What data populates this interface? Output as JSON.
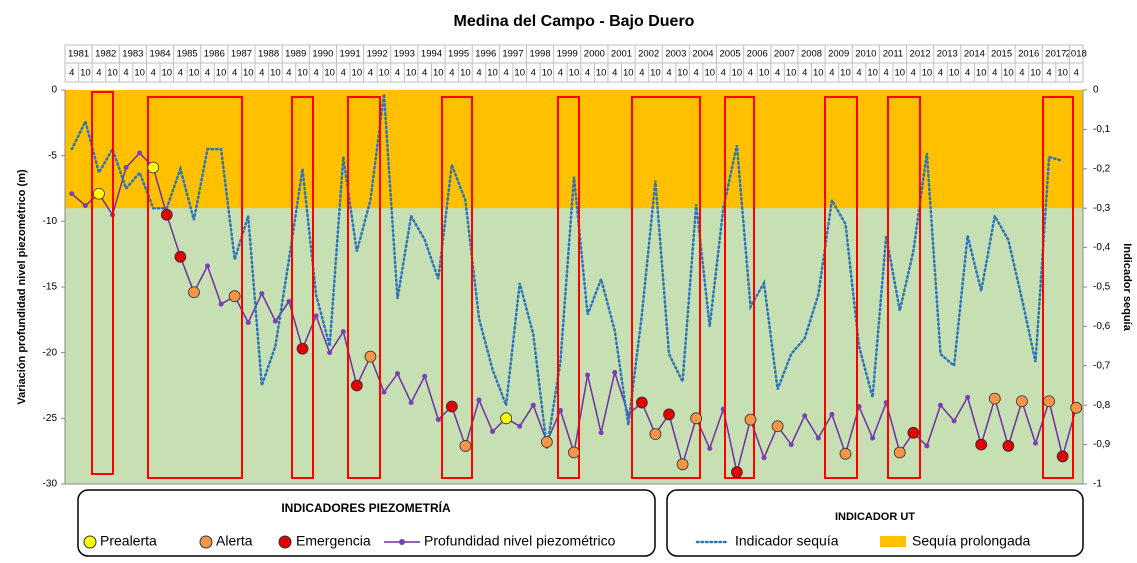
{
  "chart_data": {
    "type": "line",
    "title": "Medina del Campo - Bajo Duero",
    "years": [
      "1981",
      "1982",
      "1983",
      "1984",
      "1985",
      "1986",
      "1987",
      "1988",
      "1989",
      "1990",
      "1991",
      "1992",
      "1993",
      "1994",
      "1995",
      "1996",
      "1997",
      "1998",
      "1999",
      "2000",
      "2001",
      "2002",
      "2003",
      "2004",
      "2005",
      "2006",
      "2007",
      "2008",
      "2009",
      "2010",
      "2011",
      "2012",
      "2013",
      "2014",
      "2015",
      "2016",
      "2017",
      "2018"
    ],
    "categories": [
      "4",
      "10",
      "4",
      "10",
      "4",
      "10",
      "4",
      "10",
      "4",
      "10",
      "4",
      "10",
      "4",
      "10",
      "4",
      "10",
      "4",
      "10",
      "4",
      "10",
      "4",
      "10",
      "4",
      "10",
      "4",
      "10",
      "4",
      "10",
      "4",
      "10",
      "4",
      "10",
      "4",
      "10",
      "4",
      "10",
      "4",
      "10",
      "4",
      "10",
      "4",
      "10",
      "4",
      "10",
      "4",
      "10",
      "4",
      "10",
      "4",
      "10",
      "4",
      "10",
      "4",
      "10",
      "4",
      "10",
      "4",
      "10",
      "4",
      "10",
      "4",
      "10",
      "4",
      "10",
      "4",
      "10",
      "4",
      "10",
      "4",
      "10",
      "4",
      "10",
      "4",
      "10",
      "4"
    ],
    "ylabel": "Variación profundidad nivel piezométrico (m)",
    "y2label": "Indicador sequía",
    "ylim": [
      -30,
      0
    ],
    "yticks": [
      0,
      -5,
      -10,
      -15,
      -20,
      -25,
      -30
    ],
    "y2lim": [
      -1,
      0
    ],
    "y2ticks": [
      0,
      {
        "value": -0.1,
        "label": "-0,1"
      },
      {
        "value": -0.2,
        "label": "-0,2"
      },
      {
        "value": -0.3,
        "label": "-0,3"
      },
      {
        "value": -0.4,
        "label": "-0,4"
      },
      {
        "value": -0.5,
        "label": "-0,5"
      },
      {
        "value": -0.6,
        "label": "-0,6"
      },
      {
        "value": -0.7,
        "label": "-0,7"
      },
      {
        "value": -0.8,
        "label": "-0,8"
      },
      {
        "value": -0.9,
        "label": "-0,9"
      },
      -1
    ],
    "legend_titles": [
      "INDICADORES PIEZOMETRÍA",
      "INDICADOR UT"
    ],
    "band": {
      "name": "Sequía prolongada",
      "color": "#ffc000",
      "axis": "y2",
      "range": [
        -0.3,
        0
      ]
    },
    "background": "#c6e0b4",
    "series": [
      {
        "name": "Prealerta",
        "color": "#ffff00",
        "marker": true,
        "values": [
          null,
          null,
          -7.9,
          null,
          null,
          null,
          -5.9,
          null,
          null,
          null,
          null,
          null,
          null,
          null,
          null,
          null,
          null,
          null,
          null,
          null,
          null,
          null,
          null,
          null,
          null,
          null,
          null,
          null,
          null,
          null,
          null,
          null,
          -25.0,
          null,
          null,
          null,
          null,
          null,
          null,
          null,
          null,
          null,
          null,
          null,
          null,
          null,
          null,
          null,
          null,
          null,
          null,
          null,
          null,
          null,
          null,
          null,
          null,
          null,
          null,
          null,
          null,
          null,
          null,
          null,
          null,
          null,
          null,
          null,
          null,
          null,
          null,
          null,
          null,
          null,
          null
        ]
      },
      {
        "name": "Alerta",
        "color": "#f79646",
        "marker": true,
        "values": [
          null,
          null,
          null,
          null,
          null,
          null,
          null,
          null,
          null,
          -15.4,
          null,
          null,
          -15.7,
          null,
          null,
          null,
          null,
          null,
          null,
          null,
          null,
          null,
          -20.3,
          null,
          null,
          null,
          null,
          null,
          null,
          -27.1,
          null,
          null,
          null,
          null,
          null,
          -26.8,
          null,
          -27.6,
          null,
          null,
          null,
          null,
          null,
          -26.2,
          null,
          -28.5,
          -25.0,
          null,
          null,
          null,
          -25.1,
          null,
          -25.6,
          null,
          null,
          null,
          null,
          -27.7,
          null,
          null,
          null,
          -27.6,
          null,
          null,
          null,
          null,
          null,
          null,
          -23.5,
          null,
          -23.7,
          null,
          -23.7,
          null,
          -24.2
        ]
      },
      {
        "name": "Emergencia",
        "color": "#e00000",
        "marker": true,
        "values": [
          null,
          null,
          null,
          null,
          null,
          null,
          null,
          -9.5,
          -12.7,
          null,
          null,
          null,
          null,
          null,
          null,
          null,
          null,
          -19.7,
          null,
          null,
          null,
          -22.5,
          null,
          null,
          null,
          null,
          null,
          null,
          -24.1,
          null,
          null,
          null,
          null,
          null,
          null,
          null,
          null,
          null,
          null,
          null,
          null,
          null,
          -23.8,
          null,
          -24.7,
          null,
          null,
          null,
          null,
          -29.1,
          null,
          null,
          null,
          null,
          null,
          null,
          null,
          null,
          null,
          null,
          null,
          null,
          -26.1,
          null,
          null,
          null,
          null,
          -27.0,
          null,
          -27.1,
          null,
          null,
          null,
          -27.9,
          null
        ]
      },
      {
        "name": "Profundidad nivel piezométrico",
        "color": "#7030a0",
        "values": [
          -7.9,
          -8.8,
          -7.9,
          -9.5,
          -5.9,
          -4.8,
          -5.9,
          -9.5,
          -12.7,
          -15.4,
          -13.4,
          -16.3,
          -15.7,
          -17.7,
          -15.5,
          -17.6,
          -16.1,
          -19.7,
          -17.2,
          -20.0,
          -18.4,
          -22.5,
          -20.3,
          -23.0,
          -21.6,
          -23.8,
          -21.8,
          -25.1,
          -24.1,
          -27.1,
          -23.6,
          -26.0,
          -25.0,
          -25.6,
          -24.0,
          -26.8,
          -24.4,
          -27.6,
          -21.7,
          -26.1,
          -21.5,
          -24.7,
          -23.8,
          -26.2,
          -24.7,
          -28.5,
          -25.0,
          -27.3,
          -24.3,
          -29.1,
          -25.1,
          -28.0,
          -25.6,
          -27.0,
          -24.8,
          -26.5,
          -24.7,
          -27.7,
          -24.1,
          -26.5,
          -23.8,
          -27.6,
          -26.1,
          -27.1,
          -24.0,
          -25.2,
          -23.4,
          -27.0,
          -23.5,
          -27.1,
          -23.7,
          -26.9,
          -23.7,
          -27.9,
          -24.2
        ]
      },
      {
        "name": "Indicador sequía",
        "color": "#2e75b6",
        "axis": "y2",
        "dotted": true,
        "values": [
          -0.15,
          -0.08,
          -0.21,
          -0.15,
          -0.25,
          -0.21,
          -0.3,
          -0.3,
          -0.2,
          -0.33,
          -0.15,
          -0.15,
          -0.43,
          -0.32,
          -0.75,
          -0.65,
          -0.43,
          -0.2,
          -0.52,
          -0.65,
          -0.17,
          -0.41,
          -0.28,
          -0.01,
          -0.53,
          -0.32,
          -0.38,
          -0.48,
          -0.19,
          -0.28,
          -0.58,
          -0.71,
          -0.8,
          -0.49,
          -0.62,
          -0.91,
          -0.69,
          -0.22,
          -0.57,
          -0.48,
          -0.61,
          -0.85,
          -0.57,
          -0.23,
          -0.67,
          -0.74,
          -0.29,
          -0.6,
          -0.3,
          -0.14,
          -0.55,
          -0.49,
          -0.76,
          -0.67,
          -0.63,
          -0.52,
          -0.28,
          -0.34,
          -0.65,
          -0.78,
          -0.37,
          -0.56,
          -0.41,
          -0.16,
          -0.67,
          -0.7,
          -0.37,
          -0.51,
          -0.32,
          -0.38,
          -0.53,
          -0.69,
          -0.17,
          -0.18,
          null
        ]
      }
    ]
  }
}
